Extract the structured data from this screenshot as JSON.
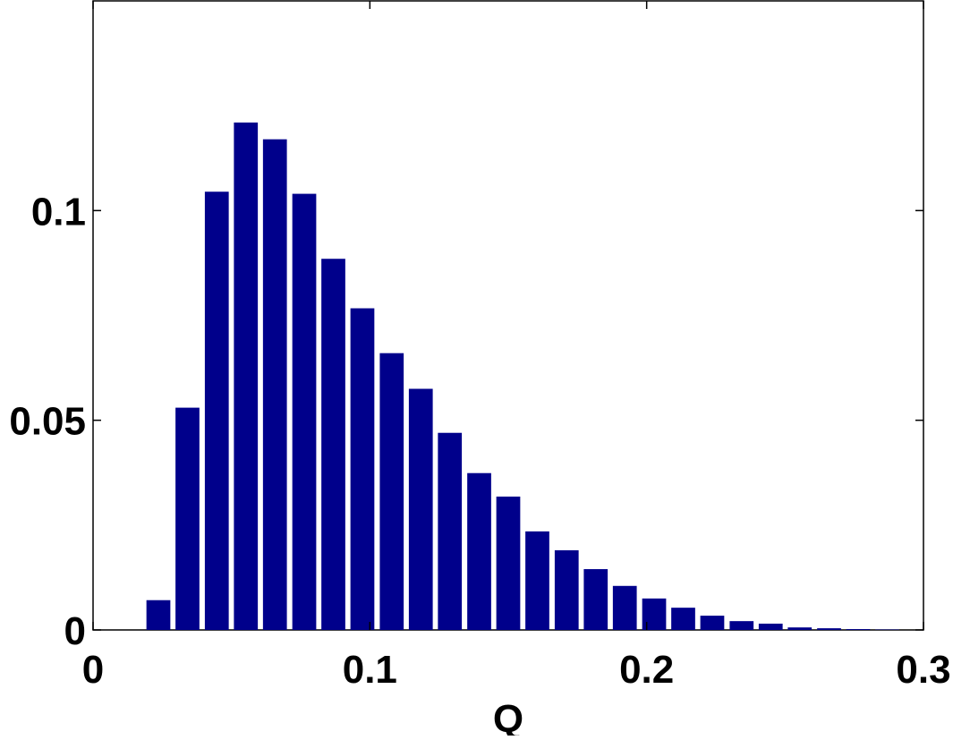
{
  "chart_data": {
    "type": "bar",
    "xlabel": "Q",
    "x": [
      0.0236,
      0.0341,
      0.0447,
      0.0552,
      0.0657,
      0.0763,
      0.0868,
      0.0973,
      0.1079,
      0.1184,
      0.1289,
      0.1395,
      0.15,
      0.1605,
      0.1711,
      0.1816,
      0.1921,
      0.2027,
      0.2132,
      0.2237,
      0.2343,
      0.2448,
      0.2553,
      0.2659,
      0.2764,
      0.2869
    ],
    "values": [
      0.0071,
      0.053,
      0.1045,
      0.121,
      0.117,
      0.104,
      0.0885,
      0.0767,
      0.066,
      0.0575,
      0.047,
      0.0374,
      0.0318,
      0.0235,
      0.019,
      0.0145,
      0.0105,
      0.0075,
      0.0053,
      0.0034,
      0.0021,
      0.0015,
      0.0006,
      0.0004,
      0.0002,
      0.0001
    ],
    "color": "#00008b",
    "xlim": [
      0,
      0.3
    ],
    "xticks": [
      0,
      0.1,
      0.2,
      0.3
    ],
    "ylim": [
      0,
      0.15
    ],
    "yticks": [
      0,
      0.05,
      0.1
    ]
  }
}
